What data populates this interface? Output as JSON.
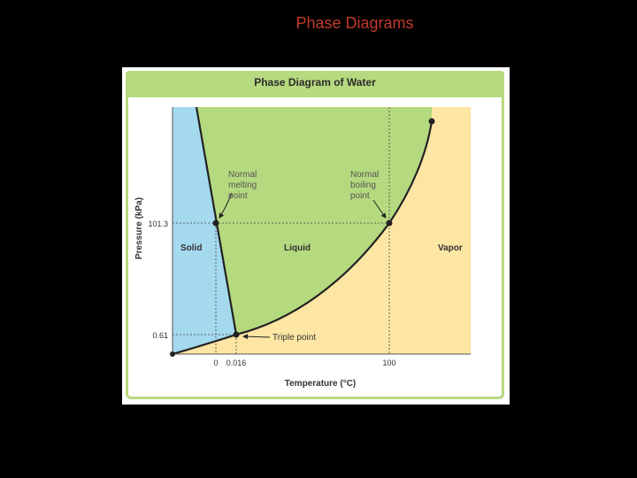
{
  "slide": {
    "title": "Phase Diagrams"
  },
  "figure": {
    "title": "Phase Diagram of Water",
    "axis": {
      "x_label": "Temperature (°C)",
      "y_label": "Pressure (kPa)",
      "x_ticks": [
        "0",
        "0.016",
        "100"
      ],
      "y_ticks": [
        "101.3",
        "0.61"
      ]
    },
    "regions": {
      "solid": "Solid",
      "liquid": "Liquid",
      "vapor": "Vapor"
    },
    "annotations": {
      "melting": [
        "Normal",
        "melting",
        "point"
      ],
      "boiling": [
        "Normal",
        "boiling",
        "point"
      ],
      "triple": "Triple point"
    },
    "colors": {
      "solid": "#a4d9ee",
      "liquid": "#b5d97f",
      "vapor": "#fde6a3",
      "curve": "#222222",
      "slide_title": "#c0392b"
    }
  }
}
